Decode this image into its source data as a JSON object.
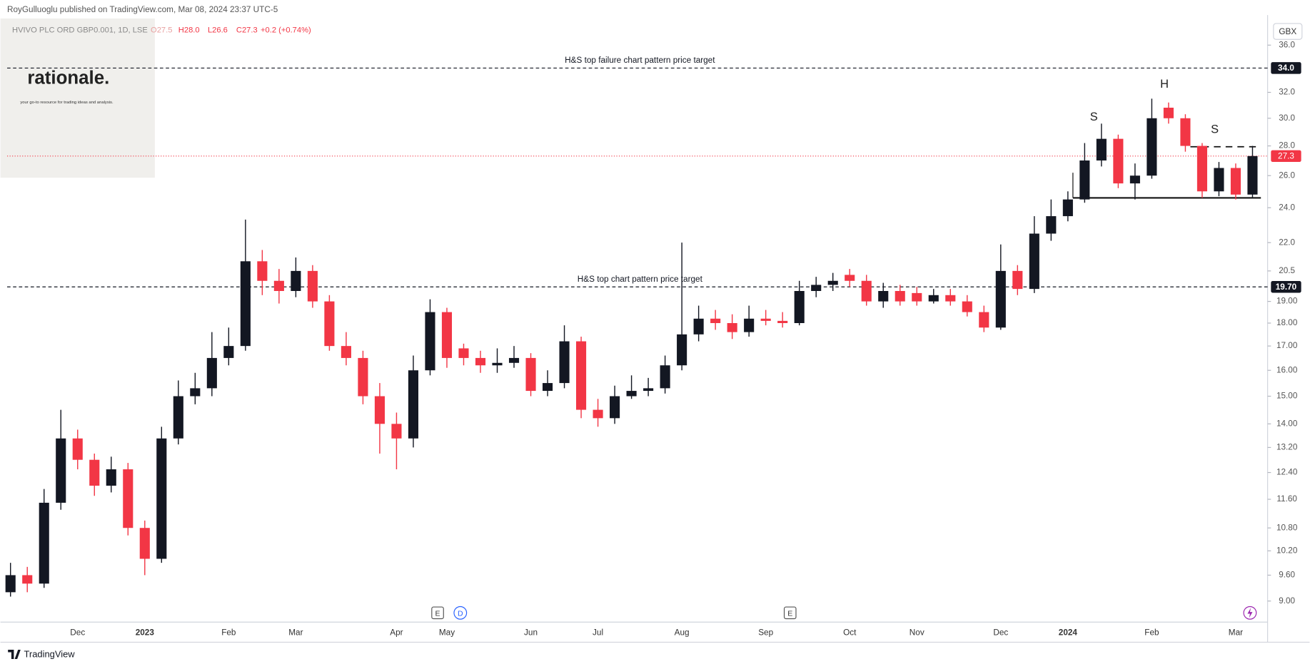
{
  "header": {
    "publisher": "RoyGulluoglu published on TradingView.com, Mar 08, 2024 23:37 UTC-5",
    "symbol": "HVIVO PLC ORD GBP0.001, 1D, LSE",
    "ohlc": [
      "O27.5",
      "H28.0",
      "L26.6",
      "C27.3",
      "+0.2 (+0.74%)"
    ]
  },
  "logo": {
    "name": "rationale.",
    "tagline": "your go-to resource for trading ideas and analysis."
  },
  "chart_data": {
    "type": "candlestick",
    "currency": "GBX",
    "log_scale": true,
    "ylim": [
      8.54,
      38.8
    ],
    "yticks": [
      {
        "value": 36,
        "label": "36.0"
      },
      {
        "value": 32,
        "label": "32.0"
      },
      {
        "value": 30,
        "label": "30.0"
      },
      {
        "value": 28,
        "label": "28.0"
      },
      {
        "value": 26,
        "label": "26.0"
      },
      {
        "value": 24,
        "label": "24.0"
      },
      {
        "value": 22,
        "label": "22.0"
      },
      20.5,
      {
        "value": 19,
        "label": "19.00"
      },
      {
        "value": 18,
        "label": "18.00"
      },
      {
        "value": 17,
        "label": "17.00"
      },
      {
        "value": 16,
        "label": "16.00"
      },
      {
        "value": 15,
        "label": "15.00"
      },
      {
        "value": 14,
        "label": "14.00"
      },
      {
        "value": 13.2,
        "label": "13.20"
      },
      {
        "value": 12.4,
        "label": "12.40"
      },
      {
        "value": 11.6,
        "label": "11.60"
      },
      {
        "value": 10.8,
        "label": "10.80"
      },
      {
        "value": 10.2,
        "label": "10.20"
      },
      {
        "value": 9.6,
        "label": "9.60"
      },
      {
        "value": 9,
        "label": "9.00"
      }
    ],
    "categories": [
      null,
      null,
      null,
      null,
      "Dec",
      null,
      null,
      null,
      "2023",
      null,
      null,
      null,
      null,
      "Feb",
      null,
      null,
      null,
      "Mar",
      null,
      null,
      null,
      null,
      null,
      "Apr",
      null,
      null,
      "May",
      null,
      null,
      null,
      null,
      "Jun",
      null,
      null,
      null,
      "Jul",
      null,
      null,
      null,
      null,
      "Aug",
      null,
      null,
      null,
      null,
      "Sep",
      null,
      null,
      null,
      null,
      "Oct",
      null,
      null,
      null,
      "Nov",
      null,
      null,
      null,
      null,
      "Dec",
      null,
      null,
      null,
      "2024",
      null,
      null,
      null,
      null,
      "Feb",
      null,
      null,
      null,
      null,
      "Mar",
      null
    ],
    "open": [
      9.2,
      9.6,
      9.4,
      11.5,
      13.5,
      12.8,
      12.0,
      12.5,
      10.8,
      10.0,
      13.5,
      15.0,
      15.3,
      16.5,
      17.0,
      21.0,
      20.0,
      19.5,
      20.5,
      19.0,
      17.0,
      16.5,
      15.0,
      14.0,
      13.5,
      16.0,
      18.5,
      16.9,
      16.5,
      16.2,
      16.3,
      16.5,
      15.2,
      15.5,
      17.2,
      14.5,
      14.2,
      15.0,
      15.2,
      15.3,
      16.2,
      17.5,
      18.2,
      18.0,
      17.6,
      18.2,
      18.1,
      18.0,
      19.5,
      19.8,
      20.3,
      20.0,
      19.0,
      19.5,
      19.4,
      19.0,
      19.3,
      19.0,
      18.5,
      17.8,
      20.5,
      19.6,
      22.5,
      23.5,
      24.5,
      27.0,
      28.5,
      25.5,
      26.0,
      30.8,
      30.0,
      28.0,
      25.0,
      26.5,
      24.8
    ],
    "high": [
      9.9,
      9.8,
      11.9,
      14.5,
      13.8,
      13.0,
      12.9,
      12.7,
      11.0,
      13.9,
      15.6,
      15.9,
      17.6,
      17.8,
      23.3,
      21.6,
      20.6,
      21.2,
      20.8,
      19.3,
      17.6,
      16.8,
      15.5,
      14.4,
      16.6,
      19.1,
      18.7,
      17.1,
      16.8,
      16.9,
      17.0,
      16.7,
      16.0,
      17.9,
      17.4,
      14.9,
      15.4,
      15.8,
      15.7,
      16.6,
      22.0,
      18.8,
      18.6,
      18.4,
      18.8,
      18.6,
      18.5,
      20.0,
      20.2,
      20.4,
      20.6,
      20.3,
      19.9,
      19.8,
      19.7,
      19.6,
      19.6,
      19.3,
      18.8,
      21.9,
      20.8,
      23.5,
      24.5,
      25.0,
      28.2,
      29.6,
      28.8,
      26.8,
      31.5,
      31.2,
      30.3,
      28.2,
      26.9,
      26.8,
      28.0
    ],
    "low": [
      9.1,
      9.2,
      9.3,
      11.3,
      12.5,
      11.7,
      11.8,
      10.6,
      9.6,
      9.9,
      13.3,
      14.7,
      15.0,
      16.2,
      16.8,
      19.3,
      18.9,
      19.2,
      18.7,
      16.8,
      16.2,
      14.7,
      13.0,
      12.5,
      13.2,
      15.8,
      16.1,
      16.2,
      15.9,
      15.9,
      16.1,
      15.0,
      15.0,
      15.3,
      14.2,
      13.9,
      14.0,
      14.9,
      15.0,
      15.1,
      16.0,
      17.2,
      17.7,
      17.3,
      17.4,
      17.9,
      17.8,
      17.9,
      19.2,
      19.5,
      19.7,
      18.8,
      18.7,
      18.8,
      18.8,
      18.9,
      18.8,
      18.3,
      17.6,
      17.7,
      19.3,
      19.4,
      22.1,
      23.2,
      24.3,
      26.6,
      25.2,
      24.5,
      25.8,
      29.6,
      27.6,
      24.6,
      24.7,
      24.5,
      24.6
    ],
    "close": [
      9.6,
      9.4,
      11.5,
      13.5,
      12.8,
      12.0,
      12.5,
      10.8,
      10.0,
      13.5,
      15.0,
      15.3,
      16.5,
      17.0,
      21.0,
      20.0,
      19.5,
      20.5,
      19.0,
      17.0,
      16.5,
      15.0,
      14.0,
      13.5,
      16.0,
      18.5,
      16.5,
      16.5,
      16.2,
      16.3,
      16.5,
      15.2,
      15.5,
      17.2,
      14.5,
      14.2,
      15.0,
      15.2,
      15.3,
      16.2,
      17.5,
      18.2,
      18.0,
      17.6,
      18.2,
      18.1,
      18.0,
      19.5,
      19.8,
      20.0,
      20.0,
      19.0,
      19.5,
      19.0,
      19.0,
      19.3,
      19.0,
      18.5,
      17.8,
      20.5,
      19.6,
      22.5,
      23.5,
      24.5,
      27.0,
      28.5,
      25.5,
      26.0,
      30.0,
      30.0,
      28.0,
      25.0,
      26.5,
      24.8,
      27.3
    ],
    "up_color": "#131722",
    "down_color": "#f23645",
    "last_price": {
      "value": 27.3,
      "label": "27.3"
    },
    "price_lines": [
      {
        "value": 34,
        "label": "34.0",
        "text": "H&S top failure chart pattern price target"
      },
      {
        "value": 19.7,
        "label": "19.70",
        "text": "H&S top chart pattern price target"
      }
    ],
    "pattern_labels": [
      "S",
      "H",
      "S"
    ],
    "events": [
      "E",
      "D",
      "E"
    ]
  },
  "footer": "TradingView"
}
